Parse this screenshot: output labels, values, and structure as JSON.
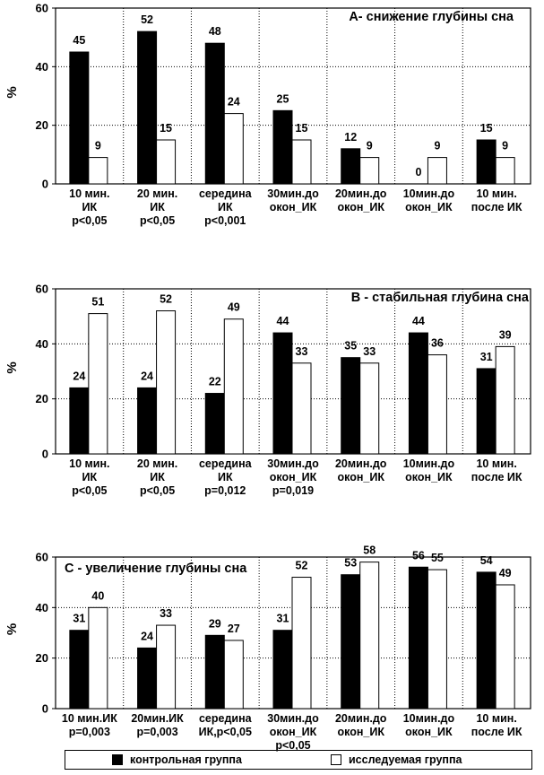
{
  "colors": {
    "control": "#000000",
    "study": "#ffffff",
    "grid": "#000000"
  },
  "legend": [
    {
      "name": "контрольная группа",
      "color": "#000000"
    },
    {
      "name": "исследуемая группа",
      "color": "#ffffff"
    }
  ],
  "chart_data": [
    {
      "type": "bar",
      "title": "А- снижение глубины сна",
      "ylabel": "%",
      "ylim": [
        0,
        60
      ],
      "yticks": [
        0,
        20,
        40,
        60
      ],
      "category_labels": [
        [
          "10 мин.",
          "ИК",
          "p<0,05"
        ],
        [
          "20 мин.",
          "ИК",
          "p<0,05"
        ],
        [
          "середина",
          "ИК",
          "p<0,001"
        ],
        [
          "30мин.до",
          "окон_ИК"
        ],
        [
          "20мин.до",
          "окон_ИК"
        ],
        [
          "10мин.до",
          "окон_ИК"
        ],
        [
          "10 мин.",
          "после ИК"
        ]
      ],
      "series": [
        {
          "name": "контрольная группа",
          "values": [
            45,
            52,
            48,
            25,
            12,
            0,
            15
          ]
        },
        {
          "name": "исследуемая группа",
          "values": [
            9,
            15,
            24,
            15,
            9,
            9,
            9
          ]
        }
      ]
    },
    {
      "type": "bar",
      "title": "В - стабильная глубина сна",
      "ylabel": "%",
      "ylim": [
        0,
        60
      ],
      "yticks": [
        0,
        20,
        40,
        60
      ],
      "category_labels": [
        [
          "10 мин.",
          "ИК",
          "p<0,05"
        ],
        [
          "20 мин.",
          "ИК",
          "p<0,05"
        ],
        [
          "середина",
          "ИК",
          "p=0,012"
        ],
        [
          "30мин.до",
          "окон_ИК",
          "p=0,019"
        ],
        [
          "20мин.до",
          "окон_ИК"
        ],
        [
          "10мин.до",
          "окон_ИК"
        ],
        [
          "10 мин.",
          "после ИК"
        ]
      ],
      "series": [
        {
          "name": "контрольная группа",
          "values": [
            24,
            24,
            22,
            44,
            35,
            44,
            31
          ]
        },
        {
          "name": "исследуемая группа",
          "values": [
            51,
            52,
            49,
            33,
            33,
            36,
            39
          ]
        }
      ]
    },
    {
      "type": "bar",
      "title": "С - увеличение глубины сна",
      "ylabel": "%",
      "ylim": [
        0,
        60
      ],
      "yticks": [
        0,
        20,
        40,
        60
      ],
      "category_labels": [
        [
          "10 мин.ИК",
          "p=0,003"
        ],
        [
          "20мин.ИК",
          "p=0,003"
        ],
        [
          "середина",
          "ИК,p<0,05"
        ],
        [
          "30мин.до",
          "окон_ИК",
          "p<0,05"
        ],
        [
          "20мин.до",
          "окон_ИК"
        ],
        [
          "10мин.до",
          "окон_ИК"
        ],
        [
          "10 мин.",
          "после ИК"
        ]
      ],
      "series": [
        {
          "name": "контрольная группа",
          "values": [
            31,
            24,
            29,
            31,
            53,
            56,
            54
          ]
        },
        {
          "name": "исследуемая группа",
          "values": [
            40,
            33,
            27,
            52,
            58,
            55,
            49
          ]
        }
      ]
    }
  ]
}
